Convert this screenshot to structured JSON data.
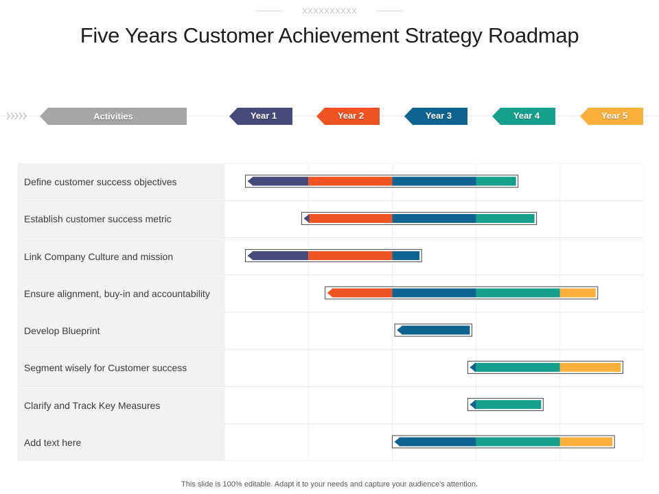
{
  "header": {
    "ornament_text": "XXXXXXXXXX",
    "title": "Five Years Customer Achievement Strategy Roadmap"
  },
  "columns": {
    "activities_label": "Activities",
    "years": [
      {
        "label": "Year 1",
        "color": "#464a7a"
      },
      {
        "label": "Year 2",
        "color": "#ef5321"
      },
      {
        "label": "Year 3",
        "color": "#0f6391"
      },
      {
        "label": "Year 4",
        "color": "#14a08c"
      },
      {
        "label": "Year 5",
        "color": "#fbb03b"
      }
    ],
    "activities_color": "#a6a6a6"
  },
  "chart_data": {
    "type": "gantt",
    "x_unit": "year",
    "xlim": [
      0,
      5
    ],
    "tasks": [
      {
        "label": "Define customer success objectives",
        "start": 0.25,
        "end": 3.5
      },
      {
        "label": "Establish customer success metric",
        "start": 0.92,
        "end": 3.72
      },
      {
        "label": "Link Company Culture and mission",
        "start": 0.25,
        "end": 2.35
      },
      {
        "label": "Ensure alignment, buy-in and accountability",
        "start": 1.2,
        "end": 4.45
      },
      {
        "label": "Develop Blueprint",
        "start": 2.03,
        "end": 2.95
      },
      {
        "label": "Segment wisely for Customer success",
        "start": 2.9,
        "end": 4.75
      },
      {
        "label": "Clarify and Track Key Measures",
        "start": 2.9,
        "end": 3.8
      },
      {
        "label": "Add text here",
        "start": 2.0,
        "end": 4.65
      }
    ]
  },
  "footer": {
    "text": "This slide is 100% editable. Adapt it to your needs and capture your audience's attention."
  }
}
